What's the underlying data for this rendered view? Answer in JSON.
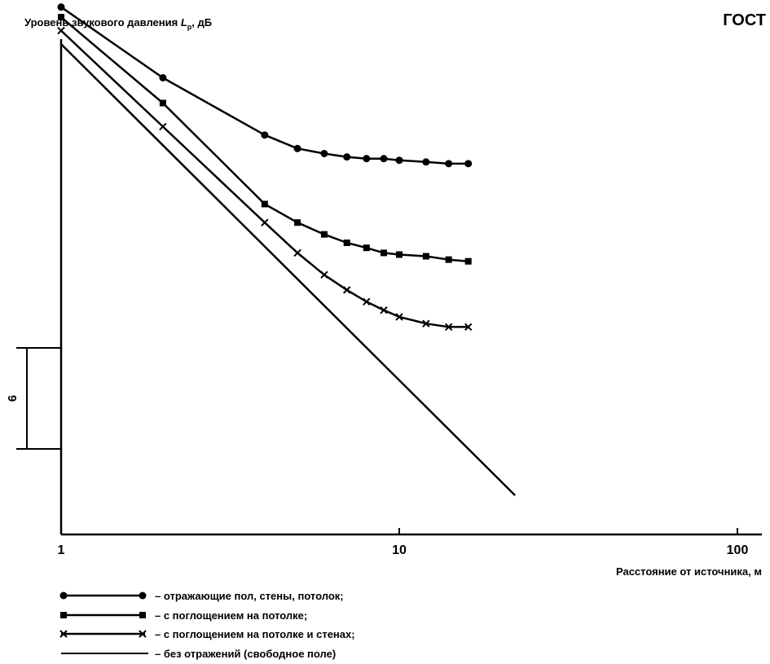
{
  "header": {
    "doc_label": "ГОСТ"
  },
  "chart_data": {
    "type": "line",
    "ylabel": "Уровень звукового давления L_p, дБ",
    "ylabel_main": "Уровень звукового давления ",
    "ylabel_symbol": "L",
    "ylabel_subscript": "p",
    "ylabel_unit": ", дБ",
    "xlabel": "Расстояние от источника, м",
    "x_scale": "log",
    "xlim": [
      1,
      100
    ],
    "x_ticks": [
      "1",
      "10",
      "100"
    ],
    "y_scale_marker": {
      "label": "6",
      "span_db": 6
    },
    "legend_position": "bottom-left",
    "series": [
      {
        "name": "– отражающие пол, стены, потолок;",
        "marker": "dot",
        "x": [
          1,
          2,
          4,
          5,
          6,
          7,
          8,
          9,
          10,
          12,
          14,
          16
        ],
        "y": [
          5.0,
          0.8,
          -2.6,
          -3.4,
          -3.7,
          -3.9,
          -4.0,
          -4.0,
          -4.1,
          -4.2,
          -4.3,
          -4.3
        ]
      },
      {
        "name": "– с поглощением на потолке;",
        "marker": "square",
        "x": [
          1,
          2,
          4,
          5,
          6,
          7,
          8,
          9,
          10,
          12,
          14,
          16
        ],
        "y": [
          4.4,
          -0.7,
          -6.7,
          -7.8,
          -8.5,
          -9.0,
          -9.3,
          -9.6,
          -9.7,
          -9.8,
          -10.0,
          -10.1
        ]
      },
      {
        "name": "– с поглощением на потолке и стенах;",
        "marker": "cross",
        "x": [
          1,
          2,
          4,
          5,
          6,
          7,
          8,
          9,
          10,
          12,
          14,
          16
        ],
        "y": [
          3.6,
          -2.1,
          -7.8,
          -9.6,
          -10.9,
          -11.8,
          -12.5,
          -13.0,
          -13.4,
          -13.8,
          -14.0,
          -14.0
        ]
      },
      {
        "name": "– без отражений (свободное поле)",
        "marker": "none",
        "x": [
          1,
          22
        ],
        "y": [
          2.8,
          -24.0
        ]
      }
    ]
  }
}
